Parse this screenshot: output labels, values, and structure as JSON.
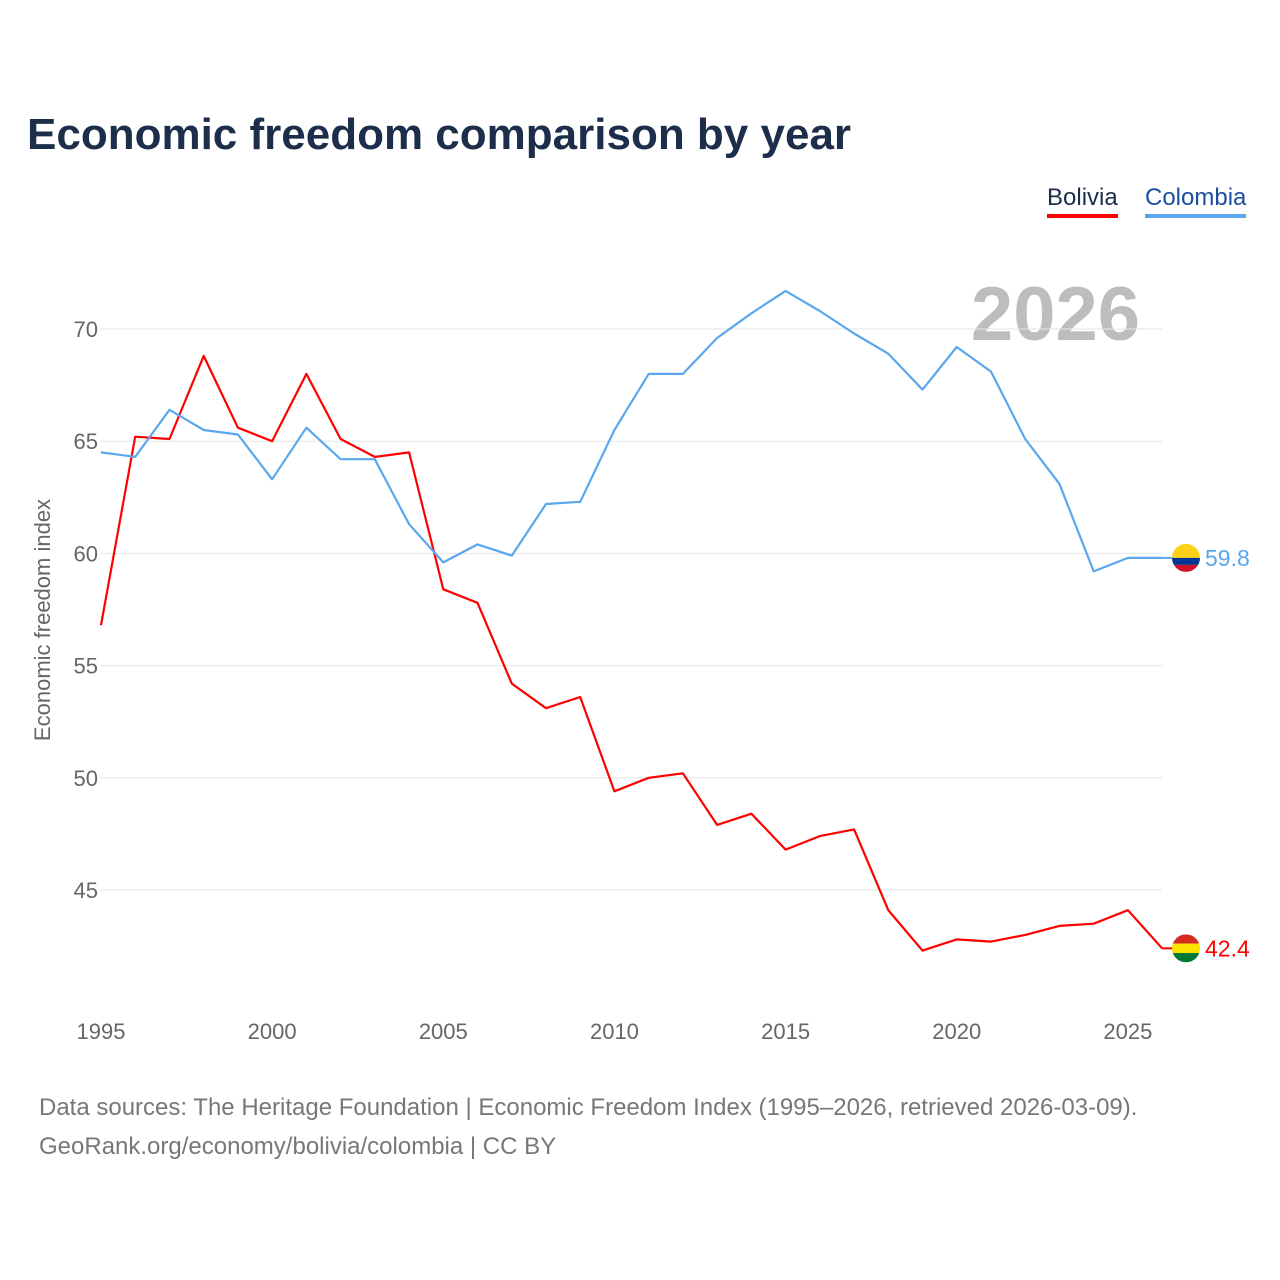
{
  "title": "Economic freedom comparison by year",
  "legend": [
    {
      "label": "Bolivia",
      "color": "#ff0000"
    },
    {
      "label": "Colombia",
      "color": "#5aa7ee"
    }
  ],
  "year_watermark": "2026",
  "footer": {
    "line1": "Data sources: The Heritage Foundation | Economic Freedom Index (1995–2026, retrieved 2026-03-09).",
    "line2": "GeoRank.org/economy/bolivia/colombia | CC BY"
  },
  "chart_data": {
    "type": "line",
    "title": "Economic freedom comparison by year",
    "xlabel": "",
    "ylabel": "Economic freedom index",
    "x": [
      1995,
      1996,
      1997,
      1998,
      1999,
      2000,
      2001,
      2002,
      2003,
      2004,
      2005,
      2006,
      2007,
      2008,
      2009,
      2010,
      2011,
      2012,
      2013,
      2014,
      2015,
      2016,
      2017,
      2018,
      2019,
      2020,
      2021,
      2022,
      2023,
      2024,
      2025,
      2026
    ],
    "xlim": [
      1995,
      2026
    ],
    "ylim": [
      40.5,
      73
    ],
    "xticks": [
      "1995",
      "2000",
      "2005",
      "2010",
      "2015",
      "2020",
      "2025"
    ],
    "yticks": [
      "45",
      "50",
      "55",
      "60",
      "65",
      "70"
    ],
    "grid": true,
    "legend_position": "top-right",
    "series": [
      {
        "name": "Bolivia",
        "color": "#ff0000",
        "end_label": "42.4",
        "values": [
          56.8,
          65.2,
          65.1,
          68.8,
          65.6,
          65.0,
          68.0,
          65.1,
          64.3,
          64.5,
          58.4,
          57.8,
          54.2,
          53.1,
          53.6,
          49.4,
          50.0,
          50.2,
          47.9,
          48.4,
          46.8,
          47.4,
          47.7,
          44.1,
          42.3,
          42.8,
          42.7,
          43.0,
          43.4,
          43.5,
          44.1,
          42.4
        ]
      },
      {
        "name": "Colombia",
        "color": "#5aa7ee",
        "end_label": "59.8",
        "values": [
          64.5,
          64.3,
          66.4,
          65.5,
          65.3,
          63.3,
          65.6,
          64.2,
          64.2,
          61.3,
          59.6,
          60.4,
          59.9,
          62.2,
          62.3,
          65.5,
          68.0,
          68.0,
          69.6,
          70.7,
          71.7,
          70.8,
          69.8,
          68.9,
          67.3,
          69.2,
          68.1,
          65.1,
          63.1,
          59.2,
          59.8,
          59.8
        ]
      }
    ]
  }
}
